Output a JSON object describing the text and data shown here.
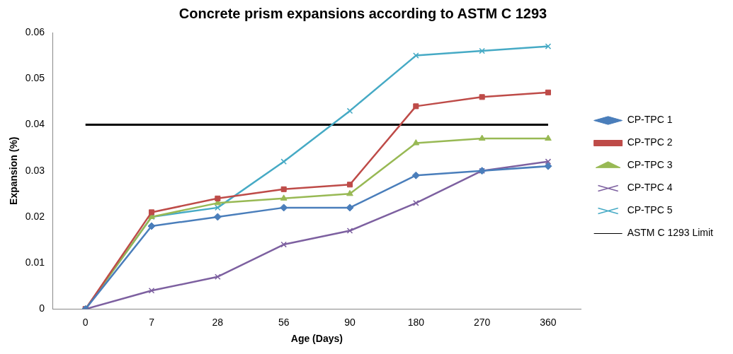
{
  "chart_data": {
    "type": "line",
    "title": "Concrete prism expansions according to ASTM C 1293",
    "xlabel": "Age (Days)",
    "ylabel": "Expansion (%)",
    "categories": [
      "0",
      "7",
      "28",
      "56",
      "90",
      "180",
      "270",
      "360"
    ],
    "series": [
      {
        "name": "CP-TPC 1",
        "color": "#4a7ebb",
        "marker": "diamond",
        "values": [
          0,
          0.018,
          0.02,
          0.022,
          0.022,
          0.029,
          0.03,
          0.031
        ]
      },
      {
        "name": "CP-TPC 2",
        "color": "#be4b48",
        "marker": "square",
        "values": [
          0,
          0.021,
          0.024,
          0.026,
          0.027,
          0.044,
          0.046,
          0.047
        ]
      },
      {
        "name": "CP-TPC 3",
        "color": "#98b954",
        "marker": "triangle",
        "values": [
          0,
          0.02,
          0.023,
          0.024,
          0.025,
          0.036,
          0.037,
          0.037
        ]
      },
      {
        "name": "CP-TPC 4",
        "color": "#7d60a0",
        "marker": "cross",
        "values": [
          0,
          0.004,
          0.007,
          0.014,
          0.017,
          0.023,
          0.03,
          0.032
        ]
      },
      {
        "name": "CP-TPC 5",
        "color": "#46aac5",
        "marker": "cross",
        "values": [
          0,
          0.02,
          0.022,
          0.032,
          0.043,
          0.055,
          0.056,
          0.057
        ]
      },
      {
        "name": "ASTM C 1293 Limit",
        "color": "#000000",
        "marker": "none",
        "values": [
          0.04,
          0.04,
          0.04,
          0.04,
          0.04,
          0.04,
          0.04,
          0.04
        ]
      }
    ],
    "ylim": [
      0,
      0.06
    ],
    "yticks": [
      0,
      0.01,
      0.02,
      0.03,
      0.04,
      0.05,
      0.06
    ],
    "grid": false,
    "legend": "right"
  }
}
